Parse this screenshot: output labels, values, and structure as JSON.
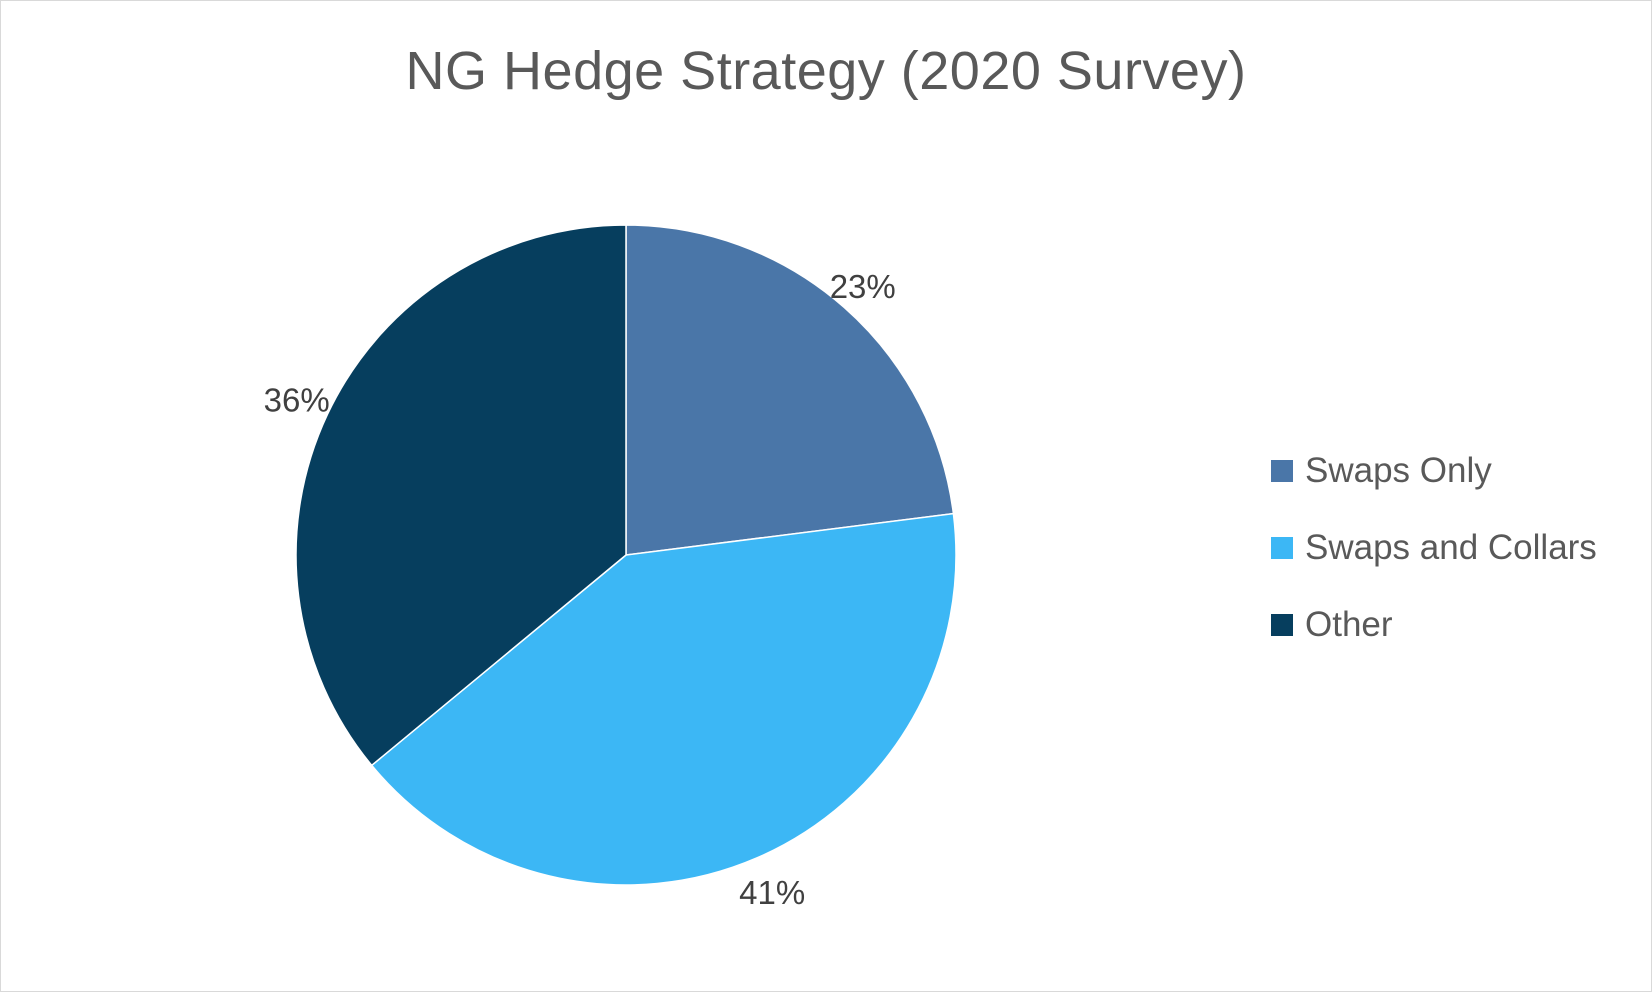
{
  "chart_data": {
    "type": "pie",
    "title": "NG Hedge Strategy (2020 Survey)",
    "categories": [
      "Swaps Only",
      "Swaps and Collars",
      "Other"
    ],
    "values": [
      23,
      41,
      36
    ],
    "labels": [
      "23%",
      "41%",
      "36%"
    ],
    "colors": [
      "#4a76a8",
      "#3cb7f5",
      "#063e5e"
    ],
    "legend": "right",
    "start_angle": "12 o'clock",
    "direction": "clockwise"
  }
}
